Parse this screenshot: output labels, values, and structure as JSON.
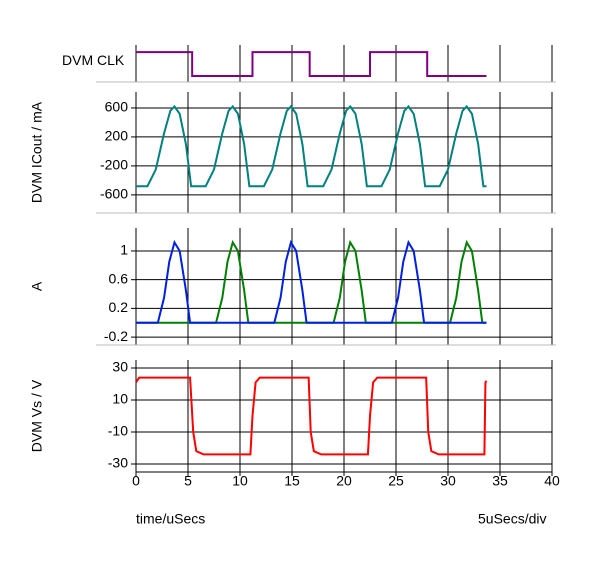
{
  "chart_data": [
    {
      "type": "line",
      "ylabel": "DVM CLK",
      "ylim": [
        -0.25,
        1.3
      ],
      "series": [
        {
          "color": "#800080",
          "x": [
            0,
            5.4,
            5.4,
            11.2,
            11.2,
            16.7,
            16.7,
            22.5,
            22.5,
            28,
            28,
            33.7
          ],
          "values": [
            1,
            1,
            0,
            0,
            1,
            1,
            0,
            0,
            1,
            1,
            0,
            0
          ]
        }
      ]
    },
    {
      "type": "line",
      "ylabel": "DVM ICout / mA",
      "ylim": [
        -850,
        820
      ],
      "yticks": [
        600,
        200,
        -200,
        -600
      ],
      "series": [
        {
          "color": "#008080",
          "x": [
            0,
            1.1,
            1.9,
            2.7,
            3.3,
            3.7,
            4.2,
            4.8,
            5.3,
            6.7,
            7.5,
            8.3,
            8.9,
            9.3,
            9.8,
            10.4,
            10.9,
            12.3,
            13.1,
            13.9,
            14.5,
            14.9,
            15.4,
            16.0,
            16.5,
            18.0,
            18.8,
            19.6,
            20.2,
            20.6,
            21.1,
            21.7,
            22.2,
            23.6,
            24.4,
            25.2,
            25.8,
            26.2,
            26.7,
            27.3,
            27.8,
            29.2,
            30.0,
            30.8,
            31.4,
            31.8,
            32.3,
            32.9,
            33.4,
            33.7
          ],
          "values": [
            -480,
            -480,
            -250,
            250,
            560,
            620,
            520,
            100,
            -480,
            -480,
            -250,
            250,
            560,
            620,
            520,
            100,
            -480,
            -480,
            -250,
            250,
            560,
            620,
            520,
            100,
            -480,
            -480,
            -250,
            250,
            560,
            620,
            520,
            100,
            -480,
            -480,
            -250,
            250,
            560,
            620,
            520,
            100,
            -480,
            -480,
            -250,
            250,
            560,
            620,
            520,
            100,
            -480,
            -480
          ]
        }
      ]
    },
    {
      "type": "line",
      "ylabel": "A",
      "ylim": [
        -0.31,
        1.32
      ],
      "yticks": [
        1,
        0.6,
        0.2,
        -0.2
      ],
      "series": [
        {
          "color": "#008000",
          "x": [
            0,
            7.7,
            8.3,
            8.8,
            9.3,
            9.8,
            10.4,
            10.8,
            19.0,
            19.6,
            20.1,
            20.6,
            21.1,
            21.7,
            22.1,
            30.2,
            30.8,
            31.3,
            31.8,
            32.3,
            32.9,
            33.3,
            33.7
          ],
          "values": [
            0,
            0,
            0.35,
            0.85,
            1.12,
            1.0,
            0.45,
            0,
            0,
            0.35,
            0.85,
            1.12,
            1.0,
            0.45,
            0,
            0,
            0.35,
            0.85,
            1.12,
            1.0,
            0.45,
            0,
            0
          ]
        },
        {
          "color": "#0020e0",
          "x": [
            0,
            2.1,
            2.7,
            3.2,
            3.7,
            4.2,
            4.8,
            5.2,
            13.3,
            13.9,
            14.4,
            14.9,
            15.4,
            16.0,
            16.4,
            24.6,
            25.2,
            25.7,
            26.2,
            26.7,
            27.3,
            27.7,
            33.7
          ],
          "values": [
            0,
            0,
            0.35,
            0.85,
            1.12,
            1.0,
            0.45,
            0,
            0,
            0.35,
            0.85,
            1.12,
            1.0,
            0.45,
            0,
            0,
            0.35,
            0.85,
            1.12,
            1.0,
            0.45,
            0,
            0
          ]
        }
      ]
    },
    {
      "type": "line",
      "ylabel": "DVM Vs / V",
      "ylim": [
        -35,
        35
      ],
      "yticks": [
        30,
        10,
        -10,
        -30
      ],
      "xlim": [
        0,
        40
      ],
      "xticks": [
        0,
        5,
        10,
        15,
        20,
        25,
        30,
        35,
        40
      ],
      "xlabel": "time/uSecs",
      "annotation": "5uSecs/div",
      "series": [
        {
          "color": "#ff0000",
          "x": [
            0,
            0.3,
            5.2,
            5.5,
            5.8,
            6.5,
            11,
            11.2,
            11.5,
            11.9,
            16.6,
            16.8,
            17.1,
            17.8,
            22.3,
            22.5,
            22.8,
            23.2,
            27.9,
            28.1,
            28.4,
            29.1,
            33.5,
            33.6,
            33.7
          ],
          "values": [
            21,
            24,
            24,
            -10,
            -22,
            -24,
            -24,
            0,
            21,
            24,
            24,
            -10,
            -22,
            -24,
            -24,
            0,
            21,
            24,
            24,
            -10,
            -22,
            -24,
            -24,
            21,
            22
          ]
        }
      ]
    }
  ]
}
